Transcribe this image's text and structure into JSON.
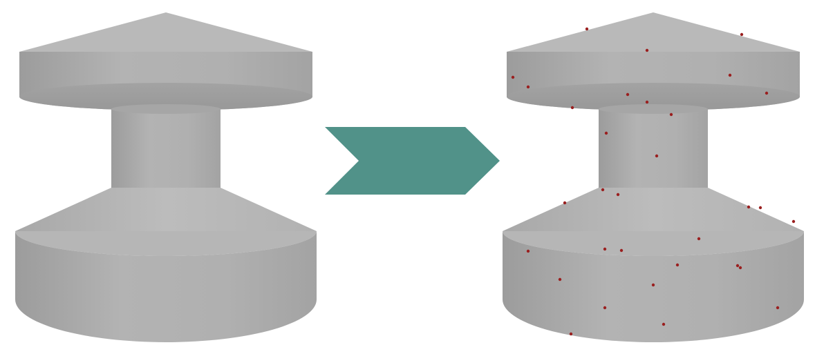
{
  "figure": {
    "left_panel": {
      "object": "cad-part",
      "sample_points": 0
    },
    "arrow": {
      "direction": "right",
      "color": "#519289"
    },
    "right_panel": {
      "object": "cad-part",
      "sample_points": 32,
      "point_color": "#9a1f1f"
    },
    "colors": {
      "surface_light": "#b8b8b8",
      "surface_mid": "#a9a9a9",
      "surface_dark": "#9a9a9a",
      "background": "#ffffff"
    }
  }
}
